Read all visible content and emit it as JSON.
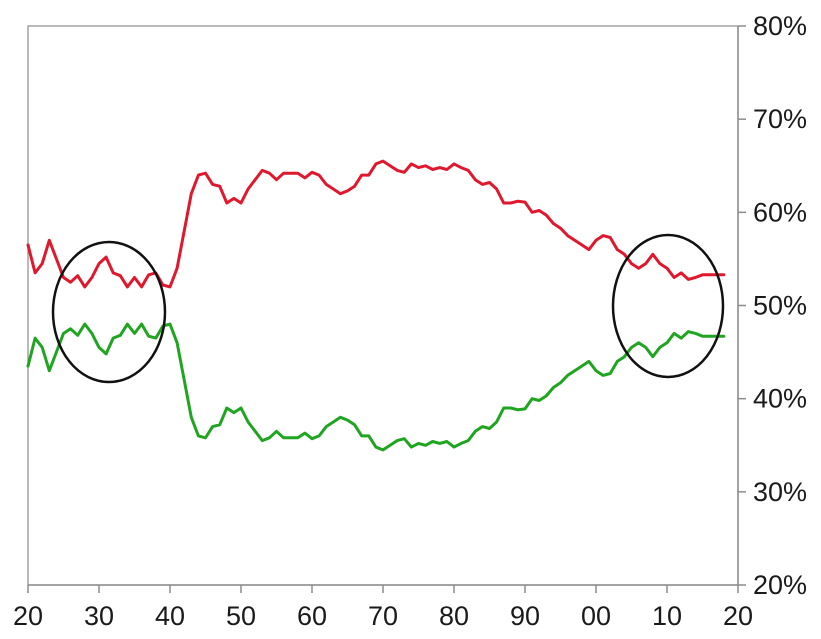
{
  "chart_data": {
    "type": "line",
    "title": "",
    "xlabel": "",
    "ylabel": "",
    "x_tick_labels": [
      "20",
      "30",
      "40",
      "50",
      "60",
      "70",
      "80",
      "90",
      "00",
      "10",
      "20"
    ],
    "x_tick_years": [
      1920,
      1930,
      1940,
      1950,
      1960,
      1970,
      1980,
      1990,
      2000,
      2010,
      2020
    ],
    "xlim": [
      1920,
      2020
    ],
    "y_tick_labels": [
      "20%",
      "30%",
      "40%",
      "50%",
      "60%",
      "70%",
      "80%"
    ],
    "y_tick_values": [
      20,
      30,
      40,
      50,
      60,
      70,
      80
    ],
    "ylim": [
      20,
      80
    ],
    "y_axis_side": "right",
    "grid": false,
    "legend": "none",
    "series": [
      {
        "color": "#e0182d",
        "x": [
          1920,
          1921,
          1922,
          1923,
          1924,
          1925,
          1926,
          1927,
          1928,
          1929,
          1930,
          1931,
          1932,
          1933,
          1934,
          1935,
          1936,
          1937,
          1938,
          1939,
          1940,
          1941,
          1942,
          1943,
          1944,
          1945,
          1946,
          1947,
          1948,
          1949,
          1950,
          1951,
          1952,
          1953,
          1954,
          1955,
          1956,
          1957,
          1958,
          1959,
          1960,
          1961,
          1962,
          1963,
          1964,
          1965,
          1966,
          1967,
          1968,
          1969,
          1970,
          1971,
          1972,
          1973,
          1974,
          1975,
          1976,
          1977,
          1978,
          1979,
          1980,
          1981,
          1982,
          1983,
          1984,
          1985,
          1986,
          1987,
          1988,
          1989,
          1990,
          1991,
          1992,
          1993,
          1994,
          1995,
          1996,
          1997,
          1998,
          1999,
          2000,
          2001,
          2002,
          2003,
          2004,
          2005,
          2006,
          2007,
          2008,
          2009,
          2010,
          2011,
          2012,
          2013,
          2014,
          2015,
          2016,
          2017,
          2018
        ],
        "values": [
          56.5,
          53.5,
          54.5,
          57,
          55,
          53,
          52.5,
          53.2,
          52,
          53,
          54.5,
          55.2,
          53.5,
          53.2,
          52,
          53,
          52,
          53.3,
          53.5,
          52.2,
          52,
          54,
          58,
          62,
          64,
          64.2,
          63,
          62.8,
          61,
          61.5,
          61,
          62.5,
          63.5,
          64.5,
          64.2,
          63.5,
          64.2,
          64.2,
          64.2,
          63.7,
          64.3,
          64,
          63,
          62.5,
          62,
          62.3,
          62.8,
          64,
          64,
          65.2,
          65.5,
          65,
          64.5,
          64.3,
          65.2,
          64.8,
          65,
          64.6,
          64.8,
          64.6,
          65.2,
          64.8,
          64.5,
          63.5,
          63,
          63.2,
          62.5,
          61,
          61,
          61.2,
          61.1,
          60,
          60.2,
          59.7,
          58.8,
          58.3,
          57.5,
          57,
          56.5,
          56,
          57,
          57.5,
          57.3,
          56,
          55.5,
          54.5,
          54,
          54.5,
          55.5,
          54.5,
          54,
          53,
          53.5,
          52.8,
          53,
          53.3,
          53.3,
          53.3,
          53.3
        ]
      },
      {
        "color": "#1fa51f",
        "x": [
          1920,
          1921,
          1922,
          1923,
          1924,
          1925,
          1926,
          1927,
          1928,
          1929,
          1930,
          1931,
          1932,
          1933,
          1934,
          1935,
          1936,
          1937,
          1938,
          1939,
          1940,
          1941,
          1942,
          1943,
          1944,
          1945,
          1946,
          1947,
          1948,
          1949,
          1950,
          1951,
          1952,
          1953,
          1954,
          1955,
          1956,
          1957,
          1958,
          1959,
          1960,
          1961,
          1962,
          1963,
          1964,
          1965,
          1966,
          1967,
          1968,
          1969,
          1970,
          1971,
          1972,
          1973,
          1974,
          1975,
          1976,
          1977,
          1978,
          1979,
          1980,
          1981,
          1982,
          1983,
          1984,
          1985,
          1986,
          1987,
          1988,
          1989,
          1990,
          1991,
          1992,
          1993,
          1994,
          1995,
          1996,
          1997,
          1998,
          1999,
          2000,
          2001,
          2002,
          2003,
          2004,
          2005,
          2006,
          2007,
          2008,
          2009,
          2010,
          2011,
          2012,
          2013,
          2014,
          2015,
          2016,
          2017,
          2018
        ],
        "values": [
          43.5,
          46.5,
          45.5,
          43,
          45,
          47,
          47.5,
          46.8,
          48,
          47,
          45.5,
          44.8,
          46.5,
          46.8,
          48,
          47,
          48,
          46.7,
          46.5,
          47.8,
          48,
          46,
          42,
          38,
          36,
          35.8,
          37,
          37.2,
          39,
          38.5,
          39,
          37.5,
          36.5,
          35.5,
          35.8,
          36.5,
          35.8,
          35.8,
          35.8,
          36.3,
          35.7,
          36,
          37,
          37.5,
          38,
          37.7,
          37.2,
          36,
          36,
          34.8,
          34.5,
          35,
          35.5,
          35.7,
          34.8,
          35.2,
          35,
          35.4,
          35.2,
          35.4,
          34.8,
          35.2,
          35.5,
          36.5,
          37,
          36.8,
          37.5,
          39,
          39,
          38.8,
          38.9,
          40,
          39.8,
          40.3,
          41.2,
          41.7,
          42.5,
          43,
          43.5,
          44,
          43,
          42.5,
          42.7,
          44,
          44.5,
          45.5,
          46,
          45.5,
          44.5,
          45.5,
          46,
          47,
          46.5,
          47.2,
          47,
          46.7,
          46.7,
          46.7,
          46.7
        ]
      }
    ]
  }
}
